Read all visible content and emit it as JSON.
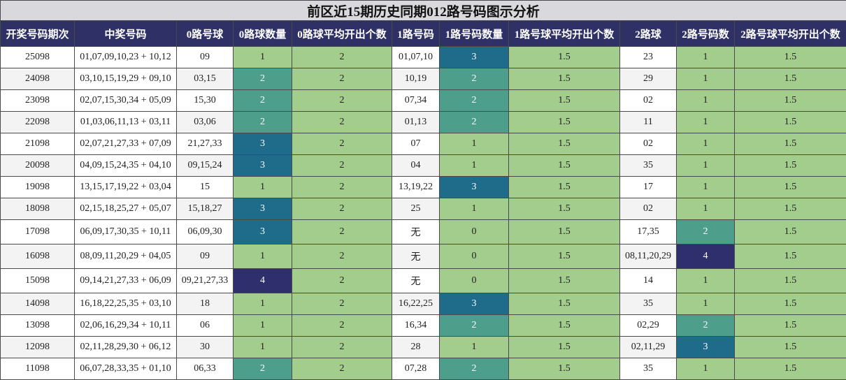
{
  "title": "前区近15期历史同期012路号码图示分析",
  "headers": [
    "开奖号码期次",
    "中奖号码",
    "0路号球",
    "0路球数量",
    "0路球平均开出个数",
    "1路号码",
    "1路号码数量",
    "1路号球平均开出个数",
    "2路球",
    "2路号码数",
    "2路号球平均开出个数"
  ],
  "colors": {
    "header_bg": "#2f3166",
    "title_bg": "#d9d9dd",
    "count_1_or_avg": "#a3cd8c",
    "count_2": "#4d9f8c",
    "count_3": "#1f6b8a",
    "count_4": "#2e2f6c"
  },
  "rows": [
    [
      "25098",
      "01,07,09,10,23 + 10,12",
      "09",
      "1",
      "2",
      "01,07,10",
      "3",
      "1.5",
      "23",
      "1",
      "1.5"
    ],
    [
      "24098",
      "03,10,15,19,29 + 09,10",
      "03,15",
      "2",
      "2",
      "10,19",
      "2",
      "1.5",
      "29",
      "1",
      "1.5"
    ],
    [
      "23098",
      "02,07,15,30,34 + 05,09",
      "15,30",
      "2",
      "2",
      "07,34",
      "2",
      "1.5",
      "02",
      "1",
      "1.5"
    ],
    [
      "22098",
      "01,03,06,11,13 + 03,11",
      "03,06",
      "2",
      "2",
      "01,13",
      "2",
      "1.5",
      "11",
      "1",
      "1.5"
    ],
    [
      "21098",
      "02,07,21,27,33 + 07,09",
      "21,27,33",
      "3",
      "2",
      "07",
      "1",
      "1.5",
      "02",
      "1",
      "1.5"
    ],
    [
      "20098",
      "04,09,15,24,35 + 04,10",
      "09,15,24",
      "3",
      "2",
      "04",
      "1",
      "1.5",
      "35",
      "1",
      "1.5"
    ],
    [
      "19098",
      "13,15,17,19,22 + 03,04",
      "15",
      "1",
      "2",
      "13,19,22",
      "3",
      "1.5",
      "17",
      "1",
      "1.5"
    ],
    [
      "18098",
      "02,15,18,25,27 + 05,07",
      "15,18,27",
      "3",
      "2",
      "25",
      "1",
      "1.5",
      "02",
      "1",
      "1.5"
    ],
    [
      "17098",
      "06,09,17,30,35 + 10,11",
      "06,09,30",
      "3",
      "2",
      "无",
      "0",
      "1.5",
      "17,35",
      "2",
      "1.5"
    ],
    [
      "16098",
      "08,09,11,20,29 + 04,05",
      "09",
      "1",
      "2",
      "无",
      "0",
      "1.5",
      "08,11,20,29",
      "4",
      "1.5"
    ],
    [
      "15098",
      "09,14,21,27,33 + 06,09",
      "09,21,27,33",
      "4",
      "2",
      "无",
      "0",
      "1.5",
      "14",
      "1",
      "1.5"
    ],
    [
      "14098",
      "16,18,22,25,35 + 03,10",
      "18",
      "1",
      "2",
      "16,22,25",
      "3",
      "1.5",
      "35",
      "1",
      "1.5"
    ],
    [
      "13098",
      "02,06,16,29,34 + 10,11",
      "06",
      "1",
      "2",
      "16,34",
      "2",
      "1.5",
      "02,29",
      "2",
      "1.5"
    ],
    [
      "12098",
      "02,11,28,29,30 + 06,12",
      "30",
      "1",
      "2",
      "28",
      "1",
      "1.5",
      "02,11,29",
      "3",
      "1.5"
    ],
    [
      "11098",
      "06,07,28,33,35 + 01,10",
      "06,33",
      "2",
      "2",
      "07,28",
      "2",
      "1.5",
      "35",
      "1",
      "1.5"
    ]
  ]
}
